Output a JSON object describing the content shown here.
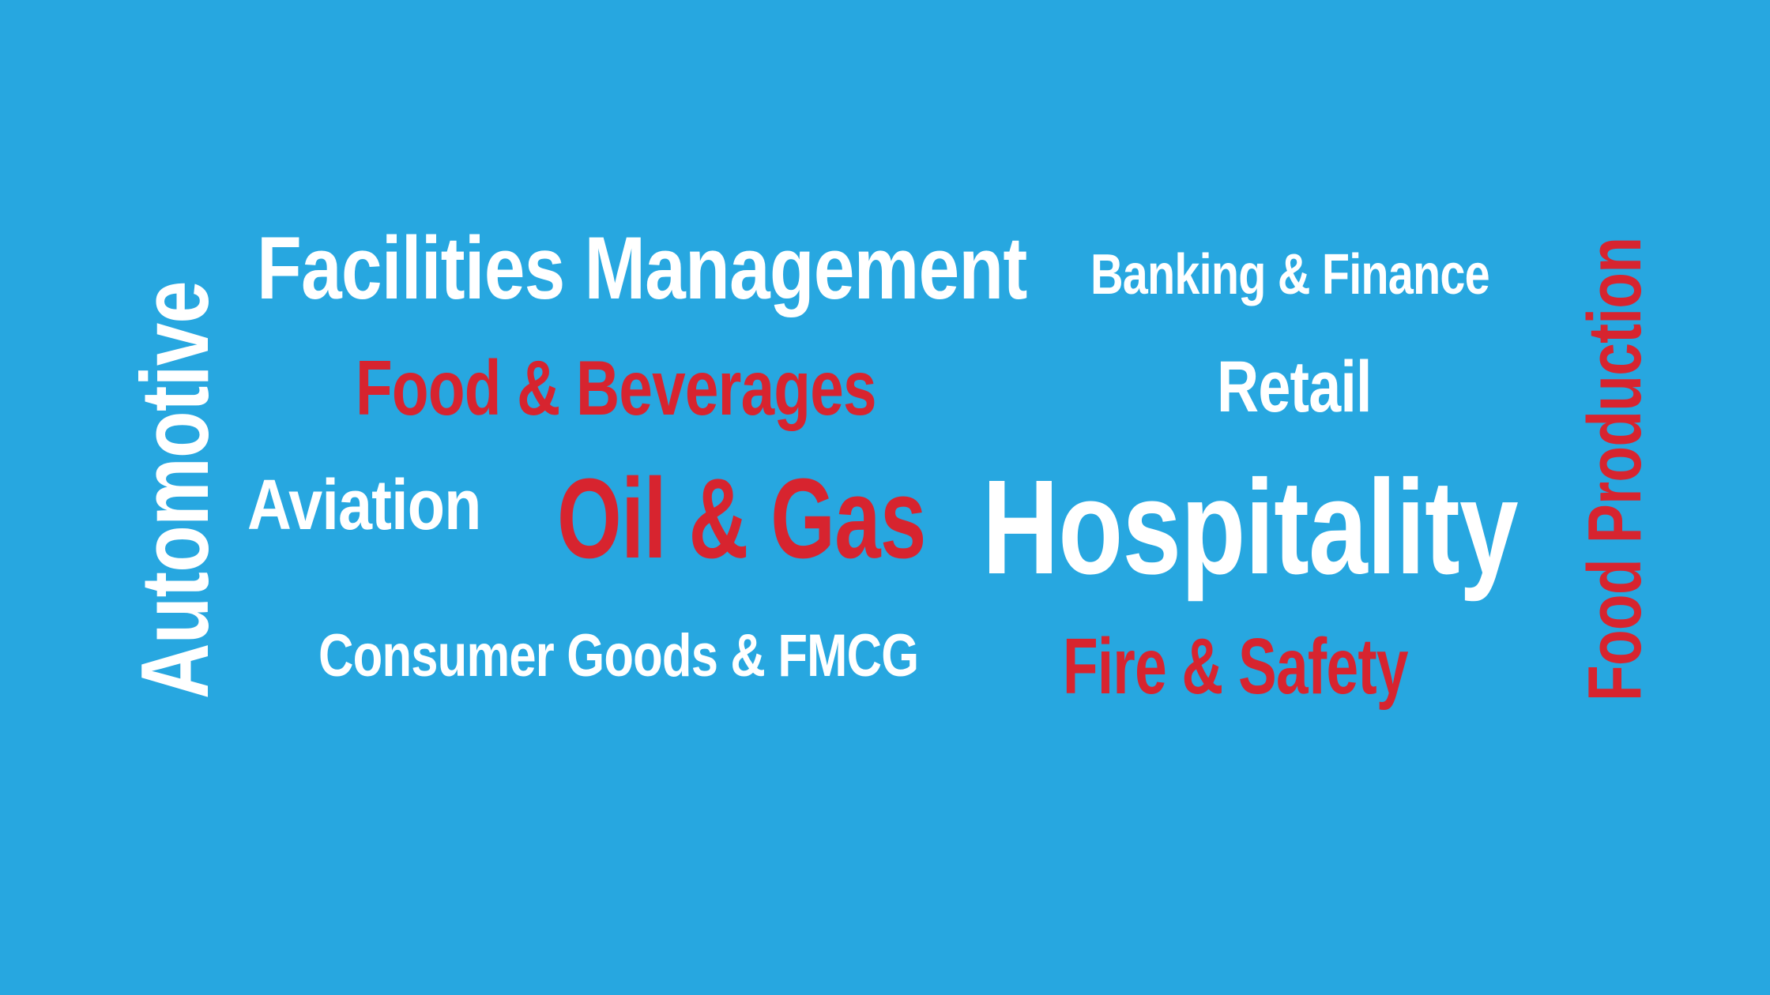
{
  "background_color": "#27a7e0",
  "colors": {
    "white": "#ffffff",
    "red": "#d7242f"
  },
  "words": {
    "automotive": "Automotive",
    "facilities_management": "Facilities Management",
    "banking_finance": "Banking & Finance",
    "food_production": "Food Production",
    "food_beverages": "Food & Beverages",
    "retail": "Retail",
    "aviation": "Aviation",
    "oil_gas": "Oil & Gas",
    "hospitality": "Hospitality",
    "consumer_goods": "Consumer Goods & FMCG",
    "fire_safety": "Fire & Safety"
  }
}
